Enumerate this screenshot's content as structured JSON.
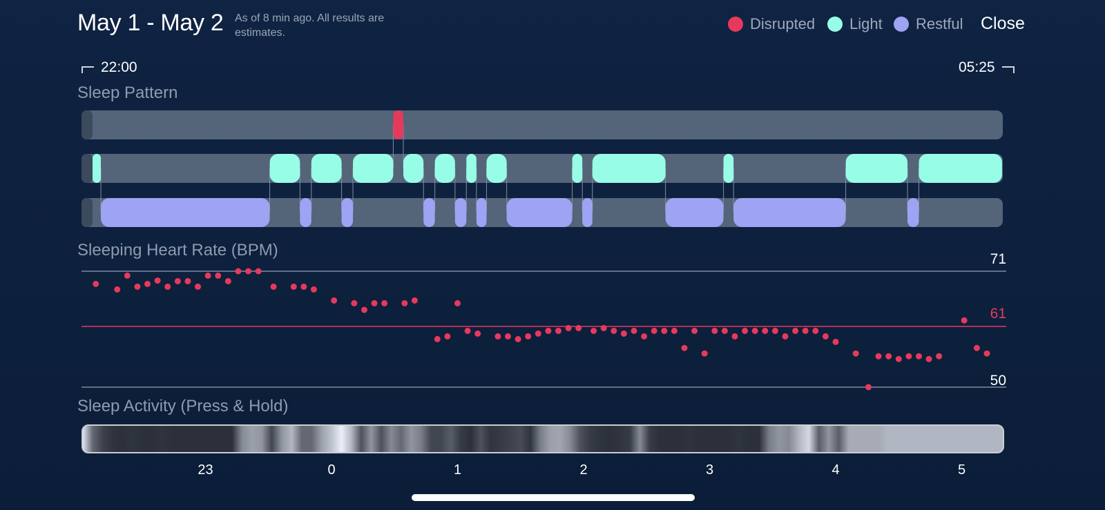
{
  "header": {
    "title": "May 1 - May 2",
    "note": "As of 8 min ago. All results are estimates.",
    "close_label": "Close"
  },
  "legend": [
    {
      "label": "Disrupted",
      "color": "#e53a5c"
    },
    {
      "label": "Light",
      "color": "#98fde6"
    },
    {
      "label": "Restful",
      "color": "#9ea3f3"
    }
  ],
  "time_range": {
    "start": "22:00",
    "end": "05:25"
  },
  "sections": {
    "sleep_pattern": "Sleep Pattern",
    "heart_rate": "Sleeping Heart Rate (BPM)",
    "activity": "Sleep Activity (Press & Hold)"
  },
  "chart_data": {
    "type": "scatter",
    "title": "Sleeping Heart Rate (BPM)",
    "y_max_label": "71",
    "y_avg_label": "61",
    "y_min_label": "50",
    "ylim": [
      50,
      71
    ],
    "x_tick_labels": [
      "23",
      "0",
      "1",
      "2",
      "3",
      "4",
      "5"
    ],
    "x_ticks_hours": [
      -1,
      0,
      1,
      2,
      3,
      4,
      5
    ],
    "xlim_hours": [
      -2,
      5.42
    ],
    "points": [
      [
        -1.87,
        68.7
      ],
      [
        -1.7,
        67.7
      ],
      [
        -1.62,
        70.2
      ],
      [
        -1.54,
        68.2
      ],
      [
        -1.46,
        68.7
      ],
      [
        -1.38,
        69.3
      ],
      [
        -1.3,
        68.2
      ],
      [
        -1.22,
        69.2
      ],
      [
        -1.14,
        69.2
      ],
      [
        -1.06,
        68.2
      ],
      [
        -0.98,
        70.2
      ],
      [
        -0.9,
        70.2
      ],
      [
        -0.82,
        69.2
      ],
      [
        -0.74,
        71.0
      ],
      [
        -0.66,
        71.0
      ],
      [
        -0.58,
        71.0
      ],
      [
        -0.46,
        68.2
      ],
      [
        -0.3,
        68.2
      ],
      [
        -0.22,
        68.2
      ],
      [
        -0.14,
        67.7
      ],
      [
        0.02,
        65.7
      ],
      [
        0.18,
        65.2
      ],
      [
        0.26,
        64.0
      ],
      [
        0.34,
        65.2
      ],
      [
        0.42,
        65.2
      ],
      [
        0.58,
        65.2
      ],
      [
        0.66,
        65.7
      ],
      [
        0.84,
        58.7
      ],
      [
        0.92,
        59.2
      ],
      [
        1.0,
        65.2
      ],
      [
        1.08,
        60.2
      ],
      [
        1.16,
        59.7
      ],
      [
        1.32,
        59.2
      ],
      [
        1.4,
        59.2
      ],
      [
        1.48,
        58.7
      ],
      [
        1.56,
        59.2
      ],
      [
        1.64,
        59.7
      ],
      [
        1.72,
        60.2
      ],
      [
        1.8,
        60.2
      ],
      [
        1.88,
        60.7
      ],
      [
        1.96,
        60.7
      ],
      [
        2.08,
        60.2
      ],
      [
        2.16,
        60.7
      ],
      [
        2.24,
        60.2
      ],
      [
        2.32,
        59.7
      ],
      [
        2.4,
        60.2
      ],
      [
        2.48,
        59.2
      ],
      [
        2.56,
        60.2
      ],
      [
        2.64,
        60.2
      ],
      [
        2.72,
        60.2
      ],
      [
        2.8,
        57.1
      ],
      [
        2.88,
        60.2
      ],
      [
        2.96,
        56.1
      ],
      [
        3.04,
        60.2
      ],
      [
        3.12,
        60.2
      ],
      [
        3.2,
        59.2
      ],
      [
        3.28,
        60.2
      ],
      [
        3.36,
        60.2
      ],
      [
        3.44,
        60.2
      ],
      [
        3.52,
        60.2
      ],
      [
        3.6,
        59.2
      ],
      [
        3.68,
        60.2
      ],
      [
        3.76,
        60.2
      ],
      [
        3.84,
        60.2
      ],
      [
        3.92,
        59.2
      ],
      [
        4.0,
        58.2
      ],
      [
        4.16,
        56.1
      ],
      [
        4.26,
        50.0
      ],
      [
        4.34,
        55.6
      ],
      [
        4.42,
        55.6
      ],
      [
        4.5,
        55.1
      ],
      [
        4.58,
        55.6
      ],
      [
        4.66,
        55.6
      ],
      [
        4.74,
        55.1
      ],
      [
        4.82,
        55.6
      ],
      [
        5.02,
        62.1
      ],
      [
        5.12,
        57.1
      ],
      [
        5.2,
        56.1
      ]
    ]
  },
  "sleep_pattern": {
    "disrupted": [
      [
        0.49,
        0.57
      ]
    ],
    "light": [
      [
        -1.91,
        -1.83
      ],
      [
        -0.49,
        -0.25
      ],
      [
        -0.16,
        0.08
      ],
      [
        0.17,
        0.49
      ],
      [
        0.57,
        0.73
      ],
      [
        0.82,
        0.98
      ],
      [
        1.07,
        1.15
      ],
      [
        1.23,
        1.39
      ],
      [
        1.91,
        1.99
      ],
      [
        2.07,
        2.65
      ],
      [
        3.11,
        3.19
      ],
      [
        4.08,
        4.57
      ],
      [
        4.66,
        5.32
      ]
    ],
    "restful": [
      [
        -1.83,
        -0.49
      ],
      [
        -0.25,
        -0.16
      ],
      [
        0.08,
        0.17
      ],
      [
        0.73,
        0.82
      ],
      [
        0.98,
        1.07
      ],
      [
        1.15,
        1.23
      ],
      [
        1.39,
        1.91
      ],
      [
        1.99,
        2.07
      ],
      [
        2.65,
        3.11
      ],
      [
        3.19,
        4.08
      ],
      [
        4.57,
        4.66
      ]
    ]
  },
  "activity_levels": [
    0.9,
    0.35,
    0.18,
    0.12,
    0.1,
    0.12,
    0.1,
    0.1,
    0.12,
    0.1,
    0.1,
    0.1,
    0.1,
    0.1,
    0.1,
    0.1,
    0.5,
    0.6,
    0.55,
    0.2,
    0.55,
    0.7,
    0.35,
    0.35,
    0.6,
    0.75,
    0.95,
    0.7,
    0.25,
    0.55,
    0.25,
    0.5,
    0.35,
    0.55,
    0.45,
    0.2,
    0.2,
    0.3,
    0.15,
    0.1,
    0.25,
    0.12,
    0.15,
    0.18,
    0.22,
    0.12,
    0.45,
    0.6,
    0.62,
    0.5,
    0.25,
    0.15,
    0.12,
    0.1,
    0.12,
    0.15,
    0.5,
    0.15,
    0.1,
    0.1,
    0.1,
    0.12,
    0.1,
    0.1,
    0.1,
    0.1,
    0.12,
    0.1,
    0.1,
    0.45,
    0.55,
    0.5,
    0.7,
    0.85,
    0.3,
    0.55,
    0.3,
    0.65,
    0.65,
    0.65,
    0.65
  ],
  "colors": {
    "background": "#0d203d",
    "track": "#546479",
    "disrupted": "#e53a5c",
    "light": "#98fde6",
    "restful": "#9ea3f3",
    "hr_dot": "#e53a5c"
  }
}
